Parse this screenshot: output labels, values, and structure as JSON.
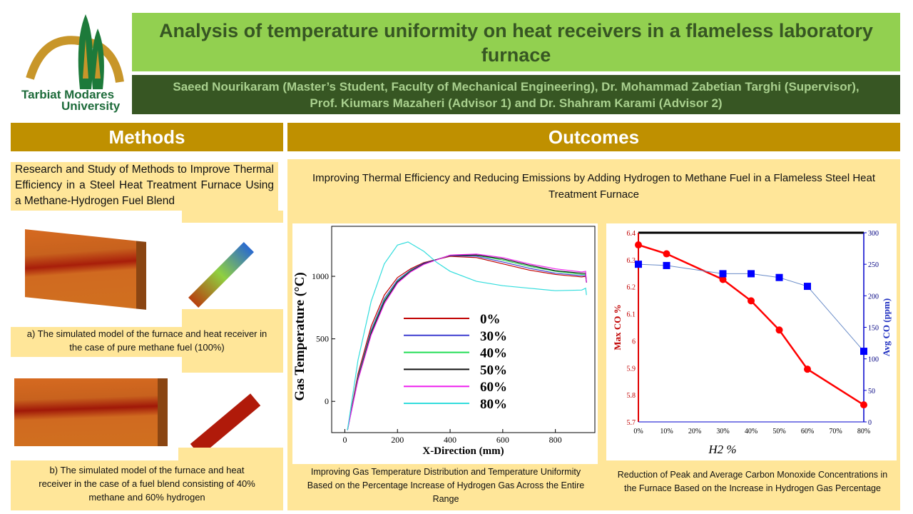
{
  "logo": {
    "text_line1": "Tarbiat Modares",
    "text_line2": "University"
  },
  "header": {
    "title": "Analysis of temperature uniformity on heat receivers in a flameless laboratory furnace",
    "authors_line1": "Saeed Nourikaram (Master’s Student, Faculty of Mechanical Engineering), Dr.  Mohammad Zabetian Targhi (Supervisor),",
    "authors_line2": "Prof. Kiumars Mazaheri (Advisor 1) and Dr. Shahram Karami (Advisor 2)"
  },
  "methods": {
    "heading": "Methods",
    "intro": "Research and Study of Methods to Improve Thermal Efficiency in a Steel Heat Treatment Furnace Using a Methane-Hydrogen Fuel Blend",
    "caption_a": "a) The simulated model of the furnace and heat receiver in the case of pure methane fuel (100%)",
    "caption_b": "b) The simulated model of the furnace and heat receiver in the case of a fuel blend consisting of 40% methane and 60% hydrogen"
  },
  "outcomes": {
    "heading": "Outcomes",
    "intro": "Improving Thermal Efficiency and Reducing Emissions by Adding Hydrogen to Methane Fuel in a Flameless Steel Heat Treatment Furnace",
    "caption_1": "Improving Gas Temperature Distribution and Temperature Uniformity Based on the Percentage Increase of Hydrogen Gas Across the Entire Range",
    "caption_2": "Reduction of Peak and Average Carbon Monoxide Concentrations in the Furnace Based on the Increase in Hydrogen Gas Percentage"
  },
  "colors": {
    "title_bg": "#92d050",
    "author_bg": "#375623",
    "section_header": "#bf9000",
    "panel": "#ffe699"
  },
  "chart_data": [
    {
      "type": "line",
      "xlabel": "X-Direction (mm)",
      "ylabel": "Gas Temperature (°C)",
      "xlim": [
        -50,
        950
      ],
      "ylim": [
        -250,
        1400
      ],
      "xticks": [
        0,
        200,
        400,
        600,
        800
      ],
      "yticks": [
        0,
        500,
        1000
      ],
      "legend": "center",
      "grid": false,
      "series": [
        {
          "name": "0%",
          "color": "#c00000",
          "x": [
            10,
            50,
            100,
            150,
            200,
            250,
            300,
            400,
            500,
            600,
            700,
            800,
            900,
            915,
            918
          ],
          "y": [
            -230,
            220,
            600,
            850,
            990,
            1060,
            1110,
            1160,
            1150,
            1100,
            1050,
            1015,
            995,
            1000,
            950
          ]
        },
        {
          "name": "30%",
          "color": "#3f3fd0",
          "x": [
            10,
            50,
            100,
            150,
            200,
            250,
            300,
            400,
            500,
            600,
            700,
            800,
            900,
            915,
            918
          ],
          "y": [
            -230,
            200,
            570,
            820,
            970,
            1050,
            1105,
            1165,
            1160,
            1115,
            1065,
            1025,
            1005,
            1005,
            950
          ]
        },
        {
          "name": "40%",
          "color": "#22dd55",
          "x": [
            10,
            50,
            100,
            150,
            200,
            250,
            300,
            400,
            500,
            600,
            700,
            800,
            900,
            915,
            918
          ],
          "y": [
            -230,
            190,
            555,
            805,
            960,
            1045,
            1100,
            1168,
            1168,
            1130,
            1080,
            1040,
            1015,
            1015,
            950
          ]
        },
        {
          "name": "50%",
          "color": "#111111",
          "x": [
            10,
            50,
            100,
            150,
            200,
            250,
            300,
            400,
            500,
            600,
            700,
            800,
            900,
            915,
            918
          ],
          "y": [
            -230,
            180,
            545,
            795,
            955,
            1040,
            1100,
            1168,
            1170,
            1140,
            1090,
            1045,
            1025,
            1025,
            950
          ]
        },
        {
          "name": "60%",
          "color": "#ee22ee",
          "x": [
            10,
            50,
            100,
            150,
            200,
            250,
            300,
            400,
            500,
            600,
            700,
            800,
            900,
            915,
            918
          ],
          "y": [
            -230,
            170,
            530,
            780,
            945,
            1035,
            1095,
            1170,
            1178,
            1150,
            1100,
            1060,
            1035,
            1040,
            950
          ]
        },
        {
          "name": "80%",
          "color": "#33dddd",
          "x": [
            10,
            50,
            100,
            150,
            200,
            240,
            300,
            350,
            400,
            500,
            600,
            700,
            800,
            900,
            915,
            918
          ],
          "y": [
            -230,
            330,
            800,
            1100,
            1250,
            1275,
            1200,
            1110,
            1040,
            960,
            925,
            905,
            885,
            890,
            905,
            850
          ]
        }
      ]
    },
    {
      "type": "line",
      "xlabel": "H2 %",
      "ylabel": "Max CO %",
      "y2label": "Avg CO (ppm)",
      "ylim": [
        5.7,
        6.4
      ],
      "y2lim": [
        0,
        300
      ],
      "categories": [
        "0%",
        "10%",
        "20%",
        "30%",
        "40%",
        "50%",
        "60%",
        "70%",
        "80%"
      ],
      "yticks": [
        "5.7",
        "5.8",
        "5.9",
        "6",
        "6.1",
        "6.2",
        "6.3",
        "6.4"
      ],
      "y2ticks": [
        "0",
        "50",
        "100",
        "150",
        "200",
        "250",
        "300"
      ],
      "series": [
        {
          "name": "Max CO %",
          "axis": "left",
          "color": "#ff0000",
          "marker": "circle",
          "x": [
            "0%",
            "10%",
            "30%",
            "40%",
            "50%",
            "60%",
            "80%"
          ],
          "values": [
            6.355,
            6.322,
            6.227,
            6.148,
            6.04,
            5.895,
            5.763
          ]
        },
        {
          "name": "Avg CO (ppm)",
          "axis": "right",
          "color": "#0000ff",
          "line_color": "#6a8cc8",
          "marker": "square",
          "x": [
            "0%",
            "10%",
            "30%",
            "40%",
            "50%",
            "60%",
            "80%"
          ],
          "values": [
            250,
            248,
            235,
            235,
            229,
            215,
            112
          ]
        }
      ]
    }
  ]
}
